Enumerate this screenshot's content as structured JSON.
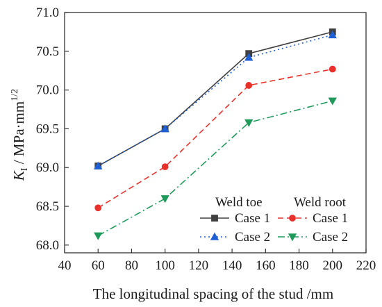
{
  "chart_data": {
    "type": "line",
    "xlabel": "The longitudinal spacing of the stud /mm",
    "ylabel": {
      "symbol": "K",
      "subscript": "I",
      "unit_prefix": " / MPa·mm",
      "superscript": "1/2"
    },
    "xlim": [
      40,
      220
    ],
    "ylim": [
      67.9,
      71.0
    ],
    "x_ticks": [
      40,
      60,
      80,
      100,
      120,
      140,
      160,
      180,
      200,
      220
    ],
    "x_tick_labels": [
      "40",
      "60",
      "80",
      "100",
      "120",
      "140",
      "160",
      "180",
      "200",
      "220"
    ],
    "y_ticks": [
      68.0,
      68.5,
      69.0,
      69.5,
      70.0,
      70.5,
      71.0
    ],
    "y_tick_labels": [
      "68.0",
      "68.5",
      "69.0",
      "69.5",
      "70.0",
      "70.5",
      "71.0"
    ],
    "grid": false,
    "legend": {
      "placement": "bottom-right",
      "groups": [
        {
          "title": "Weld toe",
          "entries": [
            "Case 1",
            "Case 2"
          ]
        },
        {
          "title": "Weld root",
          "entries": [
            "Case 1",
            "Case 2"
          ]
        }
      ]
    },
    "x": [
      60,
      100,
      150,
      200
    ],
    "series": [
      {
        "name": "Case 1",
        "group": "Weld toe",
        "values": [
          69.02,
          69.5,
          70.47,
          70.75
        ],
        "color": "#404040",
        "dash": "solid",
        "marker": "square"
      },
      {
        "name": "Case 2",
        "group": "Weld toe",
        "values": [
          69.02,
          69.5,
          70.42,
          70.71
        ],
        "color": "#1f5fd6",
        "dash": "dot",
        "marker": "triangle-up"
      },
      {
        "name": "Case 1",
        "group": "Weld root",
        "values": [
          68.48,
          69.01,
          70.06,
          70.27
        ],
        "color": "#e8312b",
        "dash": "dash",
        "marker": "circle"
      },
      {
        "name": "Case 2",
        "group": "Weld root",
        "values": [
          68.12,
          68.6,
          69.58,
          69.86
        ],
        "color": "#1f9a5a",
        "dash": "dashdot",
        "marker": "triangle-down"
      }
    ]
  }
}
